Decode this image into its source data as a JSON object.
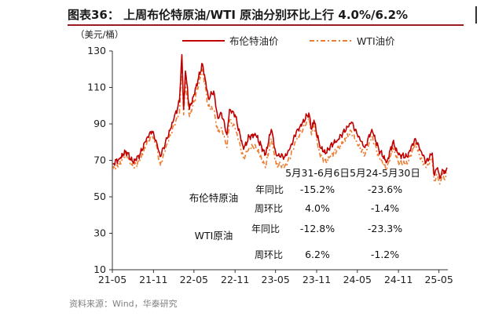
{
  "title": "图表36： 上周布伦特原油/WTI 原油分别环比上行 4.0%/6.2%",
  "source": "资料来源：Wind，华泰研究",
  "colors": {
    "brent": "#c00000",
    "wti": "#ed7d31",
    "title_rule": "#9a1b1b"
  },
  "chart_data": {
    "type": "line",
    "unit_label": "（美元/桶）",
    "ylim": [
      10,
      130
    ],
    "yticks": [
      10,
      30,
      50,
      70,
      90,
      110,
      130
    ],
    "x_range": [
      "2021-05-01",
      "2025-06-10"
    ],
    "x_tick_labels": [
      "21-05",
      "21-11",
      "22-05",
      "22-11",
      "23-05",
      "23-11",
      "24-05",
      "24-11",
      "25-05"
    ],
    "x_tick_dates": [
      "2021-05-01",
      "2021-11-01",
      "2022-05-01",
      "2022-11-01",
      "2023-05-01",
      "2023-11-01",
      "2024-05-01",
      "2024-11-01",
      "2025-05-01"
    ],
    "legend_position": "top",
    "series": [
      {
        "name": "布伦特油价",
        "style": "solid",
        "points": [
          [
            "2021-05-03",
            68
          ],
          [
            "2021-06-01",
            71
          ],
          [
            "2021-07-01",
            75
          ],
          [
            "2021-08-01",
            69
          ],
          [
            "2021-09-01",
            73
          ],
          [
            "2021-10-01",
            82
          ],
          [
            "2021-10-25",
            86
          ],
          [
            "2021-11-15",
            80
          ],
          [
            "2021-12-01",
            72
          ],
          [
            "2022-01-01",
            82
          ],
          [
            "2022-02-01",
            93
          ],
          [
            "2022-02-25",
            102
          ],
          [
            "2022-03-08",
            128
          ],
          [
            "2022-03-16",
            98
          ],
          [
            "2022-03-24",
            119
          ],
          [
            "2022-04-11",
            98
          ],
          [
            "2022-05-01",
            106
          ],
          [
            "2022-06-08",
            123
          ],
          [
            "2022-07-05",
            104
          ],
          [
            "2022-07-28",
            108
          ],
          [
            "2022-08-16",
            93
          ],
          [
            "2022-09-01",
            96
          ],
          [
            "2022-09-26",
            84
          ],
          [
            "2022-10-07",
            98
          ],
          [
            "2022-11-01",
            95
          ],
          [
            "2022-12-09",
            76
          ],
          [
            "2023-01-03",
            83
          ],
          [
            "2023-02-01",
            84
          ],
          [
            "2023-03-17",
            73
          ],
          [
            "2023-04-12",
            87
          ],
          [
            "2023-05-04",
            73
          ],
          [
            "2023-06-12",
            72
          ],
          [
            "2023-07-03",
            76
          ],
          [
            "2023-08-01",
            85
          ],
          [
            "2023-09-27",
            96
          ],
          [
            "2023-10-09",
            87
          ],
          [
            "2023-10-20",
            92
          ],
          [
            "2023-11-16",
            77
          ],
          [
            "2023-12-13",
            74
          ],
          [
            "2024-01-01",
            78
          ],
          [
            "2024-02-01",
            81
          ],
          [
            "2024-04-05",
            91
          ],
          [
            "2024-05-01",
            84
          ],
          [
            "2024-06-04",
            77
          ],
          [
            "2024-07-05",
            87
          ],
          [
            "2024-08-05",
            76
          ],
          [
            "2024-09-10",
            69
          ],
          [
            "2024-10-07",
            80
          ],
          [
            "2024-11-01",
            73
          ],
          [
            "2024-12-10",
            72
          ],
          [
            "2025-01-15",
            82
          ],
          [
            "2025-02-10",
            75
          ],
          [
            "2025-03-05",
            69
          ],
          [
            "2025-04-01",
            74
          ],
          [
            "2025-04-09",
            62
          ],
          [
            "2025-04-25",
            66
          ],
          [
            "2025-05-05",
            60
          ],
          [
            "2025-05-16",
            65
          ],
          [
            "2025-05-30",
            63
          ],
          [
            "2025-06-06",
            66
          ]
        ]
      },
      {
        "name": "WTI油价",
        "style": "dash-dot",
        "points": [
          [
            "2021-05-03",
            65
          ],
          [
            "2021-06-01",
            68
          ],
          [
            "2021-07-01",
            74
          ],
          [
            "2021-08-01",
            66
          ],
          [
            "2021-09-01",
            70
          ],
          [
            "2021-10-01",
            79
          ],
          [
            "2021-10-25",
            84
          ],
          [
            "2021-11-15",
            78
          ],
          [
            "2021-12-01",
            67
          ],
          [
            "2022-01-01",
            79
          ],
          [
            "2022-02-01",
            89
          ],
          [
            "2022-02-25",
            96
          ],
          [
            "2022-03-08",
            123
          ],
          [
            "2022-03-16",
            95
          ],
          [
            "2022-03-24",
            113
          ],
          [
            "2022-04-11",
            94
          ],
          [
            "2022-05-01",
            102
          ],
          [
            "2022-06-08",
            120
          ],
          [
            "2022-07-05",
            99
          ],
          [
            "2022-07-28",
            98
          ],
          [
            "2022-08-16",
            86
          ],
          [
            "2022-09-01",
            88
          ],
          [
            "2022-09-26",
            77
          ],
          [
            "2022-10-07",
            92
          ],
          [
            "2022-11-01",
            88
          ],
          [
            "2022-12-09",
            71
          ],
          [
            "2023-01-03",
            77
          ],
          [
            "2023-02-01",
            78
          ],
          [
            "2023-03-17",
            66
          ],
          [
            "2023-04-12",
            82
          ],
          [
            "2023-05-04",
            68
          ],
          [
            "2023-06-12",
            67
          ],
          [
            "2023-07-03",
            71
          ],
          [
            "2023-08-01",
            81
          ],
          [
            "2023-09-27",
            93
          ],
          [
            "2023-10-09",
            84
          ],
          [
            "2023-10-20",
            89
          ],
          [
            "2023-11-16",
            73
          ],
          [
            "2023-12-13",
            69
          ],
          [
            "2024-01-01",
            72
          ],
          [
            "2024-02-01",
            76
          ],
          [
            "2024-04-05",
            86
          ],
          [
            "2024-05-01",
            79
          ],
          [
            "2024-06-04",
            73
          ],
          [
            "2024-07-05",
            83
          ],
          [
            "2024-08-05",
            72
          ],
          [
            "2024-09-10",
            65
          ],
          [
            "2024-10-07",
            77
          ],
          [
            "2024-11-01",
            69
          ],
          [
            "2024-12-10",
            68
          ],
          [
            "2025-01-15",
            79
          ],
          [
            "2025-02-10",
            71
          ],
          [
            "2025-03-05",
            66
          ],
          [
            "2025-04-01",
            71
          ],
          [
            "2025-04-09",
            59
          ],
          [
            "2025-04-25",
            62
          ],
          [
            "2025-05-05",
            57
          ],
          [
            "2025-05-16",
            62
          ],
          [
            "2025-05-30",
            60
          ],
          [
            "2025-06-06",
            63
          ]
        ]
      }
    ],
    "annotation_table": {
      "columns": [
        "5月31-6月6日",
        "5月24-5月30日"
      ],
      "rows": [
        {
          "group": "布伦特原油",
          "metric": "年同比",
          "values": [
            "-15.2%",
            "-23.6%"
          ]
        },
        {
          "group": "",
          "metric": "周环比",
          "values": [
            "4.0%",
            "-1.4%"
          ]
        },
        {
          "group": "WTI原油",
          "metric": "年同比",
          "values": [
            "-12.8%",
            "-23.3%"
          ]
        },
        {
          "group": "",
          "metric": "周环比",
          "values": [
            "6.2%",
            "-1.2%"
          ]
        }
      ]
    }
  }
}
